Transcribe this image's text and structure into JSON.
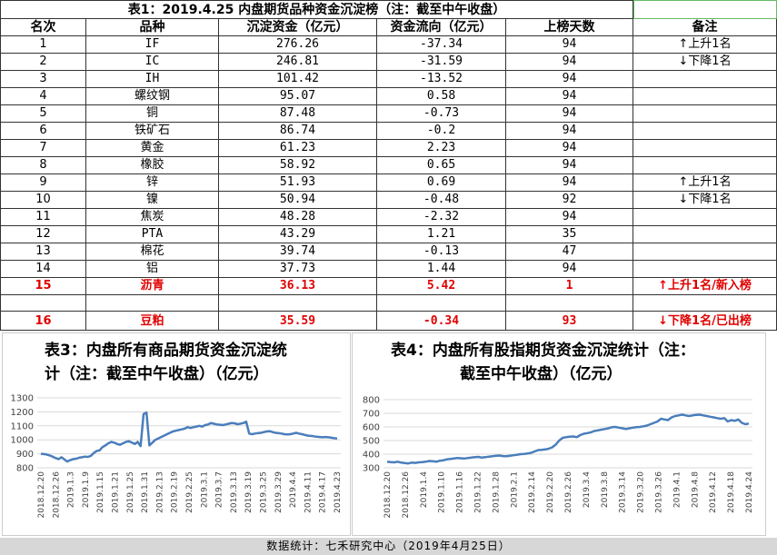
{
  "table": {
    "title": "表1：2019.4.25 内盘期货品种资金沉淀榜（注：截至中午收盘）",
    "headers": [
      "名次",
      "品种",
      "沉淀资金（亿元）",
      "资金流向（亿元）",
      "上榜天数",
      "备注"
    ],
    "rows": [
      {
        "rank": "1",
        "name": "IF",
        "fund": "276.26",
        "flow": "-37.34",
        "days": "94",
        "note": "↑上升1名"
      },
      {
        "rank": "2",
        "name": "IC",
        "fund": "246.81",
        "flow": "-31.59",
        "days": "94",
        "note": "↓下降1名"
      },
      {
        "rank": "3",
        "name": "IH",
        "fund": "101.42",
        "flow": "-13.52",
        "days": "94",
        "note": ""
      },
      {
        "rank": "4",
        "name": "螺纹钢",
        "fund": "95.07",
        "flow": "0.58",
        "days": "94",
        "note": ""
      },
      {
        "rank": "5",
        "name": "铜",
        "fund": "87.48",
        "flow": "-0.73",
        "days": "94",
        "note": ""
      },
      {
        "rank": "6",
        "name": "铁矿石",
        "fund": "86.74",
        "flow": "-0.2",
        "days": "94",
        "note": ""
      },
      {
        "rank": "7",
        "name": "黄金",
        "fund": "61.23",
        "flow": "2.23",
        "days": "94",
        "note": ""
      },
      {
        "rank": "8",
        "name": "橡胶",
        "fund": "58.92",
        "flow": "0.65",
        "days": "94",
        "note": ""
      },
      {
        "rank": "9",
        "name": "锌",
        "fund": "51.93",
        "flow": "0.69",
        "days": "94",
        "note": "↑上升1名"
      },
      {
        "rank": "10",
        "name": "镍",
        "fund": "50.94",
        "flow": "-0.48",
        "days": "92",
        "note": "↓下降1名"
      },
      {
        "rank": "11",
        "name": "焦炭",
        "fund": "48.28",
        "flow": "-2.32",
        "days": "94",
        "note": ""
      },
      {
        "rank": "12",
        "name": "PTA",
        "fund": "43.29",
        "flow": "1.21",
        "days": "35",
        "note": ""
      },
      {
        "rank": "13",
        "name": "棉花",
        "fund": "39.74",
        "flow": "-0.13",
        "days": "47",
        "note": ""
      },
      {
        "rank": "14",
        "name": "铝",
        "fund": "37.73",
        "flow": "1.44",
        "days": "94",
        "note": ""
      }
    ],
    "row15": {
      "rank": "15",
      "name": "沥青",
      "fund": "36.13",
      "flow": "5.42",
      "days": "1",
      "note": "上升1名/新入榜"
    },
    "row16": {
      "rank": "16",
      "name": "豆粕",
      "fund": "35.59",
      "flow": "-0.34",
      "days": "93",
      "note": "下降1名/已出榜"
    }
  },
  "chart_data": [
    {
      "type": "line",
      "title": "表3：内盘所有商品期货资金沉淀统计（注：截至中午收盘）（亿元）",
      "title_line1": "表3：内盘所有商品期货资金沉淀统",
      "title_line2": "计（注：截至中午收盘）（亿元）",
      "ylim": [
        800,
        1300
      ],
      "yticks": [
        800,
        900,
        1000,
        1100,
        1200,
        1300
      ],
      "xticks": [
        "2018.12.20",
        "2018.12.26",
        "2019.1.3",
        "2019.1.9",
        "2019.1.15",
        "2019.1.21",
        "2019.1.25",
        "2019.1.31",
        "2019.2.13",
        "2019.2.19",
        "2019.2.25",
        "2019.3.1",
        "2019.3.7",
        "2019.3.13",
        "2019.3.19",
        "2019.3.25",
        "2019.3.29",
        "2019.4.4",
        "2019.4.11",
        "2019.4.17",
        "2019.4.23"
      ],
      "color": "#4a7ebb",
      "values": [
        900,
        898,
        895,
        888,
        880,
        870,
        862,
        875,
        860,
        845,
        855,
        862,
        865,
        872,
        875,
        880,
        878,
        885,
        905,
        920,
        925,
        948,
        960,
        975,
        985,
        980,
        970,
        965,
        975,
        985,
        990,
        980,
        970,
        985,
        955,
        1185,
        1195,
        960,
        980,
        1000,
        1010,
        1020,
        1030,
        1040,
        1050,
        1060,
        1065,
        1070,
        1075,
        1080,
        1090,
        1085,
        1090,
        1095,
        1100,
        1095,
        1105,
        1110,
        1120,
        1115,
        1110,
        1108,
        1105,
        1110,
        1115,
        1120,
        1118,
        1112,
        1115,
        1120,
        1130,
        1045,
        1040,
        1045,
        1048,
        1050,
        1055,
        1060,
        1062,
        1055,
        1050,
        1048,
        1045,
        1040,
        1038,
        1040,
        1045,
        1050,
        1045,
        1040,
        1035,
        1030,
        1028,
        1025,
        1022,
        1020,
        1018,
        1020,
        1018,
        1015,
        1012,
        1010
      ]
    },
    {
      "type": "line",
      "title": "表4：内盘所有股指期货资金沉淀统计（注：截至中午收盘）（亿元）",
      "title_line1": "表4：内盘所有股指期货资金沉淀统计（注：",
      "title_line2": "截至中午收盘）（亿元）",
      "ylim": [
        300,
        800
      ],
      "yticks": [
        300,
        400,
        500,
        600,
        700,
        800
      ],
      "xticks": [
        "2018.12.20",
        "2018.12.26",
        "2019.1.4",
        "2019.1.10",
        "2019.1.16",
        "2019.1.22",
        "2019.1.28",
        "2019.2.1",
        "2019.2.14",
        "2019.2.20",
        "2019.2.26",
        "2019.3.4",
        "2019.3.8",
        "2019.3.14",
        "2019.3.20",
        "2019.3.26",
        "2019.4.1",
        "2019.4.8",
        "2019.4.12",
        "2019.4.18",
        "2019.4.24"
      ],
      "color": "#4a7ebb",
      "values": [
        345,
        342,
        340,
        345,
        338,
        335,
        332,
        338,
        336,
        340,
        342,
        345,
        350,
        348,
        345,
        352,
        355,
        362,
        365,
        368,
        372,
        370,
        368,
        372,
        375,
        378,
        380,
        375,
        378,
        382,
        385,
        388,
        390,
        386,
        385,
        388,
        392,
        396,
        400,
        402,
        405,
        410,
        420,
        430,
        432,
        435,
        440,
        450,
        470,
        500,
        520,
        525,
        528,
        530,
        525,
        540,
        550,
        555,
        560,
        570,
        575,
        580,
        585,
        590,
        598,
        600,
        595,
        590,
        585,
        590,
        595,
        598,
        600,
        605,
        610,
        620,
        630,
        640,
        660,
        655,
        650,
        670,
        680,
        685,
        690,
        685,
        680,
        685,
        688,
        690,
        685,
        680,
        675,
        670,
        665,
        660,
        665,
        640,
        650,
        645,
        655,
        630,
        620,
        625
      ]
    }
  ],
  "footer": "数据统计：七禾研究中心（2019年4月25日）"
}
